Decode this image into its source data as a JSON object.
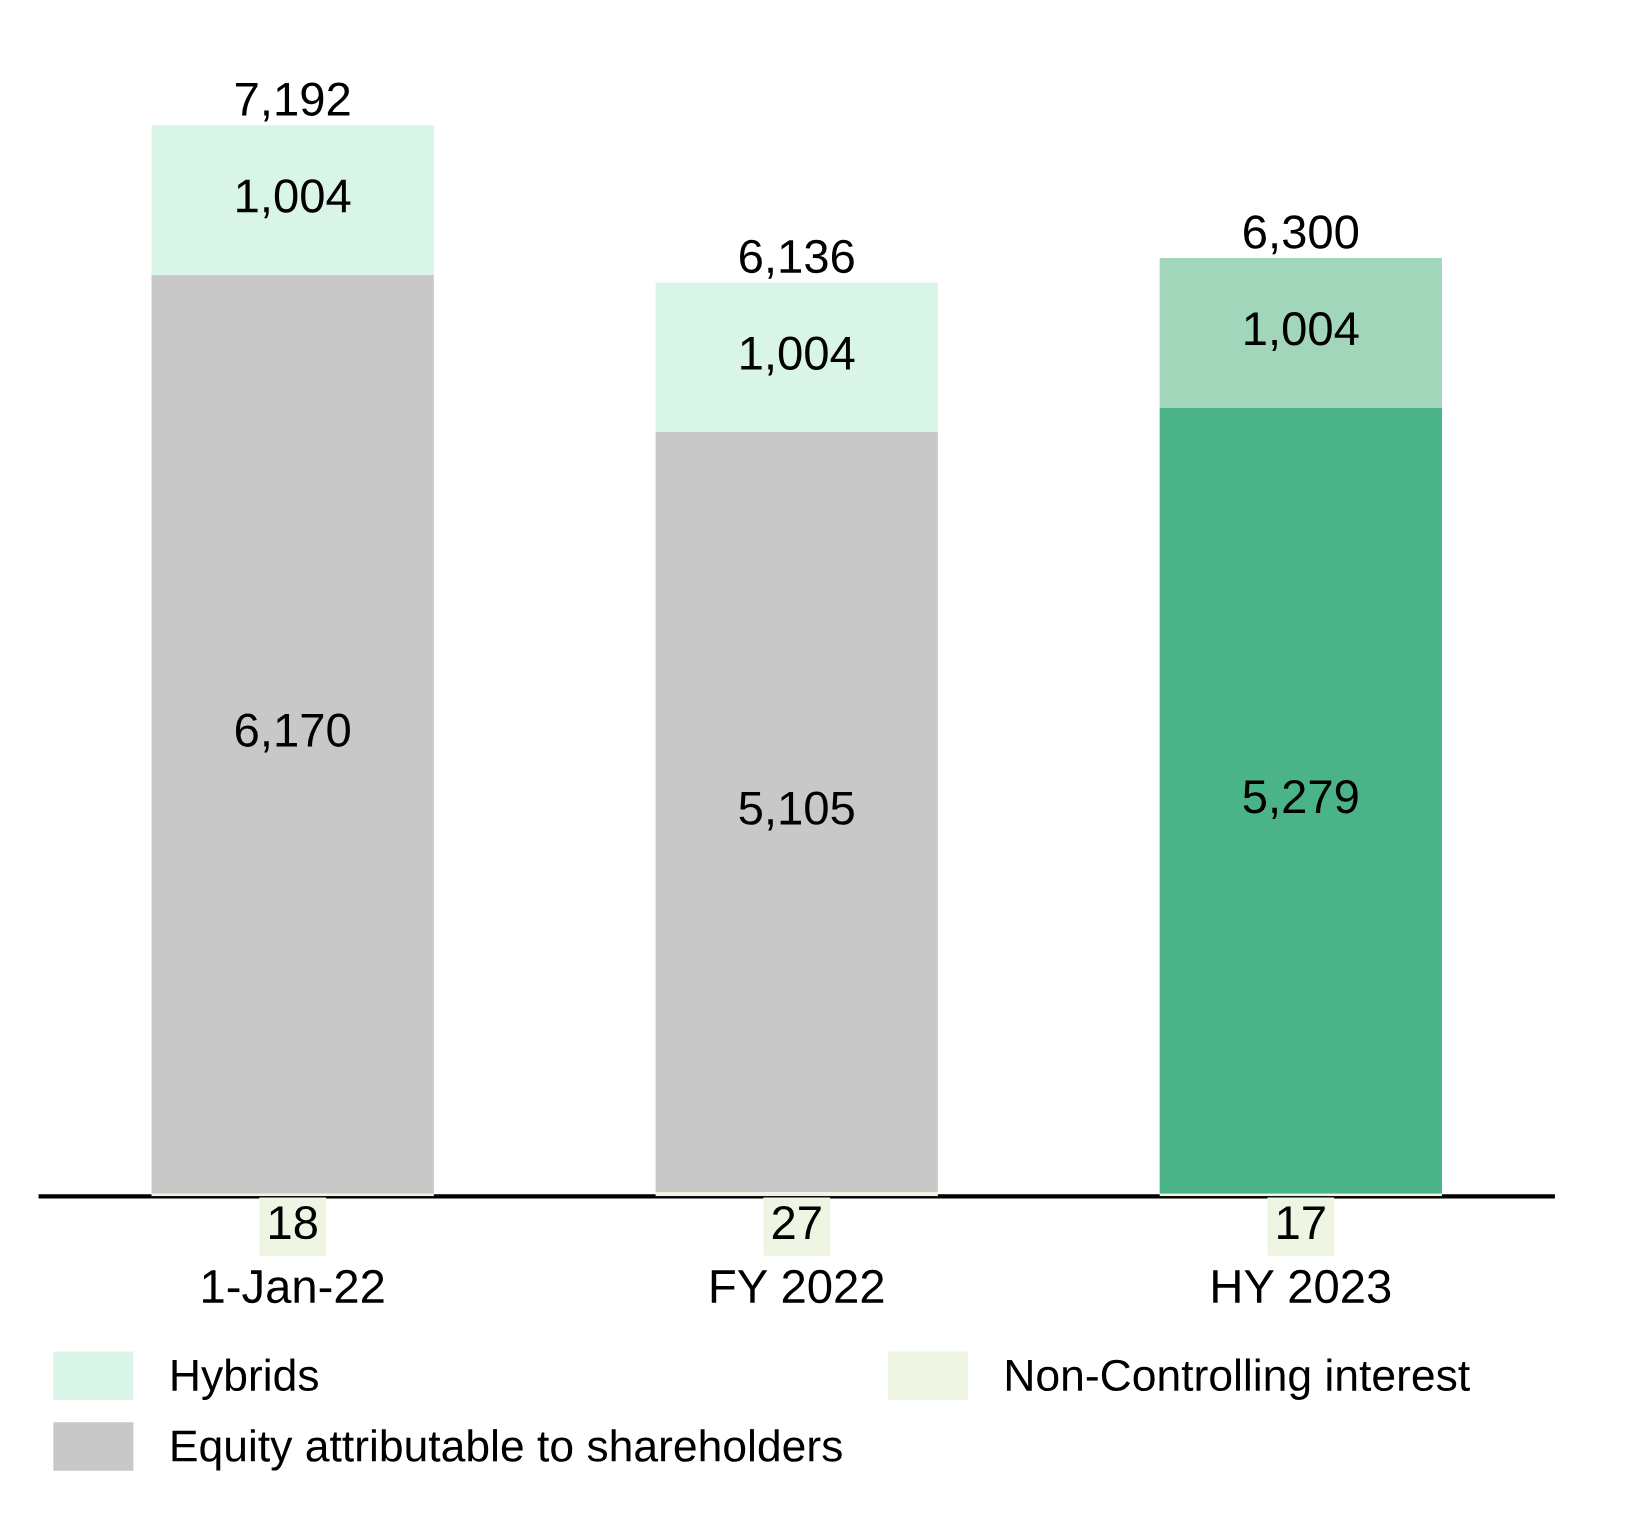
{
  "chart_data": {
    "type": "bar",
    "stacked": true,
    "legend": "bottom",
    "categories": [
      "1-Jan-22",
      "FY 2022",
      "HY 2023"
    ],
    "series": [
      {
        "name": "Non-Controlling interest",
        "color": "#eef5e3",
        "values": [
          18,
          27,
          17
        ],
        "value_labels": [
          "18",
          "27",
          "17"
        ]
      },
      {
        "name": "Equity attributable to shareholders",
        "color": "#c8c8c8",
        "colors": [
          "#c8c8c8",
          "#c8c8c8",
          "#4ab388"
        ],
        "values": [
          6170,
          5105,
          5279
        ],
        "value_labels": [
          "6,170",
          "5,105",
          "5,279"
        ]
      },
      {
        "name": "Hybrids",
        "color": "#d9f5e8",
        "colors": [
          "#d9f5e8",
          "#d9f5e8",
          "#a1d6ba"
        ],
        "values": [
          1004,
          1004,
          1004
        ],
        "value_labels": [
          "1,004",
          "1,004",
          "1,004"
        ]
      }
    ],
    "totals": [
      "7,192",
      "6,136",
      "6,300"
    ]
  }
}
